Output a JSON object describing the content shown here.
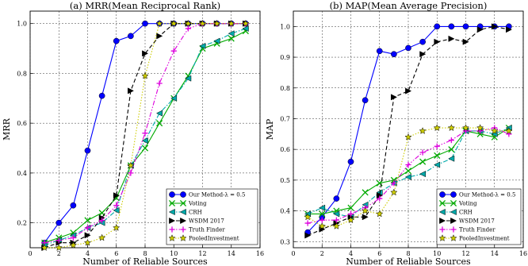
{
  "chart_data": [
    {
      "type": "line",
      "title": "(a) MRR(Mean Reciprocal Rank)",
      "xlabel": "Number of Reliable Sources",
      "ylabel": "MRR",
      "xlim": [
        0,
        16
      ],
      "ylim": [
        0.1,
        1.05
      ],
      "xticks": [
        "0",
        "2",
        "4",
        "6",
        "8",
        "10",
        "12",
        "14",
        "16"
      ],
      "yticks": [
        "0.2",
        "0.4",
        "0.6",
        "0.8",
        "1.0"
      ],
      "grid": true,
      "legend_position": "bottom-right",
      "x": [
        1,
        2,
        3,
        4,
        5,
        6,
        7,
        8,
        9,
        10,
        11,
        12,
        13,
        14,
        15
      ],
      "series": [
        {
          "name": "Our Method-λ = 0.5",
          "color": "#0000ff",
          "dash": "solid",
          "marker": "circle",
          "values": [
            0.12,
            0.2,
            0.27,
            0.49,
            0.71,
            0.93,
            0.95,
            1.0,
            1.0,
            1.0,
            1.0,
            1.0,
            1.0,
            1.0,
            1.0
          ]
        },
        {
          "name": "Voting",
          "color": "#00aa00",
          "dash": "solid",
          "marker": "x",
          "values": [
            0.12,
            0.14,
            0.16,
            0.21,
            0.24,
            0.3,
            0.43,
            0.5,
            0.6,
            0.7,
            0.79,
            0.9,
            0.92,
            0.94,
            0.97
          ]
        },
        {
          "name": "CRH",
          "color": "#00aaaa",
          "dash": "dashdot",
          "marker": "triangle-left",
          "values": [
            0.11,
            0.13,
            0.15,
            0.18,
            0.2,
            0.25,
            0.43,
            0.53,
            0.64,
            0.7,
            0.78,
            0.91,
            0.93,
            0.96,
            0.98
          ]
        },
        {
          "name": "WSDM 2017",
          "color": "#000000",
          "dash": "dashed",
          "marker": "triangle-right",
          "values": [
            0.1,
            0.12,
            0.12,
            0.15,
            0.22,
            0.31,
            0.73,
            0.88,
            0.95,
            1.0,
            1.0,
            1.0,
            1.0,
            1.0,
            1.0
          ]
        },
        {
          "name": "Truth Finder",
          "color": "#dd00dd",
          "dash": "dashdotdot",
          "marker": "plus",
          "values": [
            0.12,
            0.13,
            0.14,
            0.18,
            0.21,
            0.27,
            0.4,
            0.56,
            0.76,
            0.89,
            0.98,
            1.0,
            1.0,
            1.0,
            1.0
          ]
        },
        {
          "name": "PooledInvestment",
          "color": "#cccc00",
          "dash": "dotted",
          "marker": "star",
          "values": [
            0.1,
            0.1,
            0.11,
            0.12,
            0.14,
            0.18,
            0.43,
            0.79,
            1.0,
            1.0,
            1.0,
            1.0,
            1.0,
            1.0,
            1.0
          ]
        }
      ]
    },
    {
      "type": "line",
      "title": "(b) MAP(Mean Average Precision)",
      "xlabel": "Number of Reliable Sources",
      "ylabel": "MAP",
      "xlim": [
        0,
        16
      ],
      "ylim": [
        0.28,
        1.05
      ],
      "xticks": [
        "0",
        "2",
        "4",
        "6",
        "8",
        "10",
        "12",
        "14",
        "16"
      ],
      "yticks": [
        "0.3",
        "0.4",
        "0.5",
        "0.6",
        "0.7",
        "0.8",
        "0.9",
        "1.0"
      ],
      "grid": true,
      "legend_position": "bottom-right",
      "x": [
        1,
        2,
        3,
        4,
        5,
        6,
        7,
        8,
        9,
        10,
        11,
        12,
        13,
        14,
        15
      ],
      "series": [
        {
          "name": "Our Method-λ = 0.5",
          "color": "#0000ff",
          "dash": "solid",
          "marker": "circle",
          "values": [
            0.33,
            0.38,
            0.44,
            0.56,
            0.76,
            0.92,
            0.91,
            0.93,
            0.95,
            1.0,
            1.0,
            1.0,
            1.0,
            1.0,
            1.0
          ]
        },
        {
          "name": "Voting",
          "color": "#00aa00",
          "dash": "solid",
          "marker": "x",
          "values": [
            0.39,
            0.39,
            0.4,
            0.41,
            0.46,
            0.49,
            0.5,
            0.53,
            0.56,
            0.58,
            0.6,
            0.66,
            0.65,
            0.64,
            0.67
          ]
        },
        {
          "name": "CRH",
          "color": "#00aaaa",
          "dash": "dashdot",
          "marker": "triangle-left",
          "values": [
            0.39,
            0.41,
            0.39,
            0.38,
            0.42,
            0.46,
            0.49,
            0.51,
            0.52,
            0.55,
            0.57,
            0.66,
            0.66,
            0.65,
            0.67
          ]
        },
        {
          "name": "WSDM 2017",
          "color": "#000000",
          "dash": "dashed",
          "marker": "triangle-right",
          "values": [
            0.32,
            0.34,
            0.36,
            0.38,
            0.38,
            0.45,
            0.77,
            0.79,
            0.91,
            0.95,
            0.96,
            0.95,
            0.99,
            1.0,
            0.99
          ]
        },
        {
          "name": "Truth Finder",
          "color": "#dd00dd",
          "dash": "dashdotdot",
          "marker": "plus",
          "values": [
            0.36,
            0.37,
            0.37,
            0.39,
            0.41,
            0.44,
            0.49,
            0.55,
            0.59,
            0.61,
            0.63,
            0.66,
            0.66,
            0.67,
            0.65
          ]
        },
        {
          "name": "PooledInvestment",
          "color": "#cccc00",
          "dash": "dotted",
          "marker": "star",
          "values": [
            0.38,
            0.35,
            0.35,
            0.37,
            0.4,
            0.39,
            0.46,
            0.64,
            0.66,
            0.67,
            0.67,
            0.67,
            0.67,
            0.66,
            0.66
          ]
        }
      ]
    }
  ]
}
